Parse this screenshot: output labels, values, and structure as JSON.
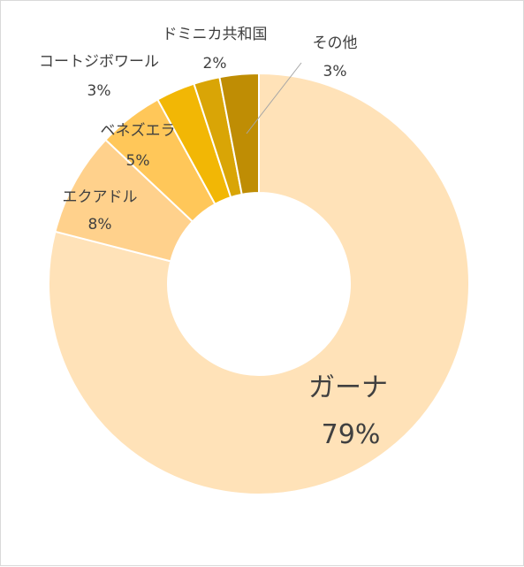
{
  "chart_data": {
    "type": "pie",
    "donut": true,
    "categories": [
      "ガーナ",
      "エクアドル",
      "ベネズエラ",
      "コートジボワール",
      "ドミニカ共和国",
      "その他"
    ],
    "values": [
      79,
      8,
      5,
      3,
      2,
      3
    ],
    "value_labels": [
      "79%",
      "8%",
      "5%",
      "3%",
      "2%",
      "3%"
    ],
    "colors": [
      "#FFE2B8",
      "#FFD18C",
      "#FFC759",
      "#F2B705",
      "#D9A506",
      "#BF8D04"
    ],
    "legend": "none"
  }
}
